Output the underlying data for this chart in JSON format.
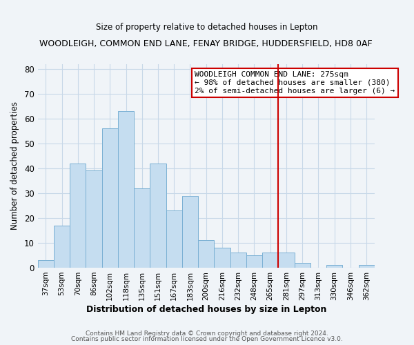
{
  "title": "WOODLEIGH, COMMON END LANE, FENAY BRIDGE, HUDDERSFIELD, HD8 0AF",
  "subtitle": "Size of property relative to detached houses in Lepton",
  "xlabel": "Distribution of detached houses by size in Lepton",
  "ylabel": "Number of detached properties",
  "categories": [
    "37sqm",
    "53sqm",
    "70sqm",
    "86sqm",
    "102sqm",
    "118sqm",
    "135sqm",
    "151sqm",
    "167sqm",
    "183sqm",
    "200sqm",
    "216sqm",
    "232sqm",
    "248sqm",
    "265sqm",
    "281sqm",
    "297sqm",
    "313sqm",
    "330sqm",
    "346sqm",
    "362sqm"
  ],
  "values": [
    3,
    17,
    42,
    39,
    56,
    63,
    32,
    42,
    23,
    29,
    11,
    8,
    6,
    5,
    6,
    6,
    2,
    0,
    1,
    0,
    1
  ],
  "bar_color": "#c5ddf0",
  "bar_edge_color": "#7ab0d4",
  "vline_color": "#cc0000",
  "annotation_box_text": "WOODLEIGH COMMON END LANE: 275sqm\n← 98% of detached houses are smaller (380)\n2% of semi-detached houses are larger (6) →",
  "ylim": [
    0,
    82
  ],
  "yticks": [
    0,
    10,
    20,
    30,
    40,
    50,
    60,
    70,
    80
  ],
  "footer1": "Contains HM Land Registry data © Crown copyright and database right 2024.",
  "footer2": "Contains public sector information licensed under the Open Government Licence v3.0.",
  "bg_color": "#f0f4f8",
  "grid_color": "#c8d8e8"
}
